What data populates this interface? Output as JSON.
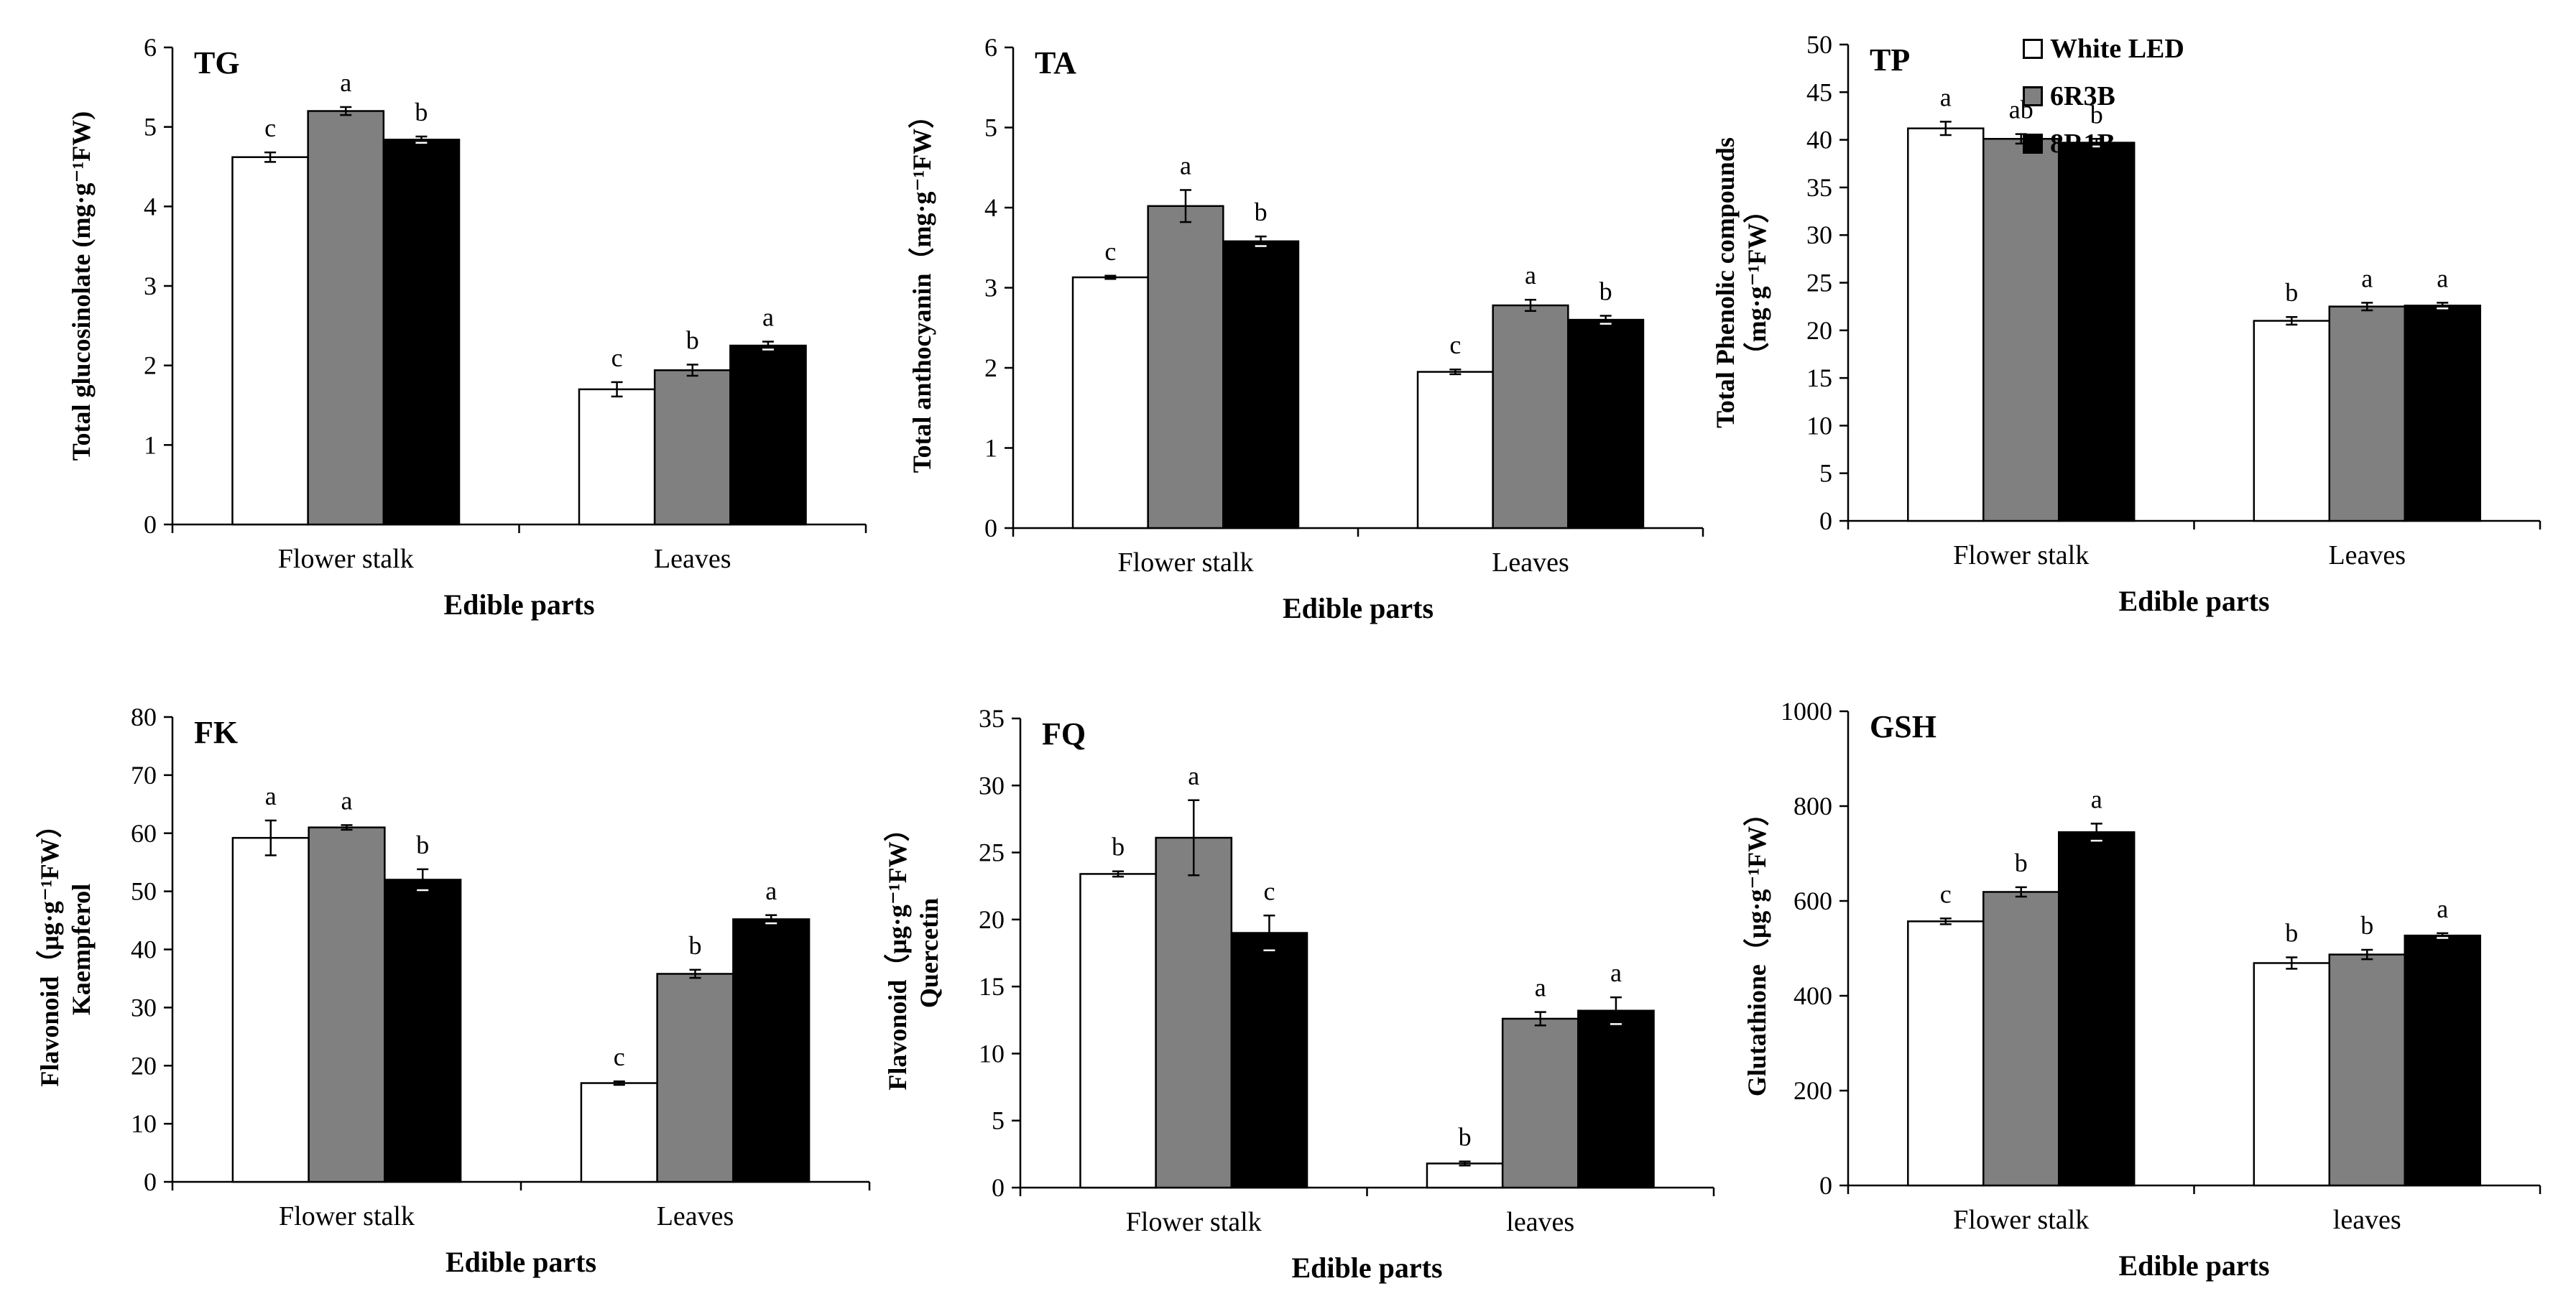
{
  "legend": {
    "items": [
      {
        "label": "White LED",
        "color": "#ffffff"
      },
      {
        "label": "6R3B",
        "color": "#808080"
      },
      {
        "label": "8R1B",
        "color": "#000000"
      }
    ]
  },
  "chart_data": [
    {
      "type": "bar",
      "panel": "TG",
      "ylabel": "Total glucosinolate (mg·g⁻¹FW)",
      "ylabel_lines": [
        "Total glucosinolate (mg·g⁻¹FW)"
      ],
      "xlabel": "Edible parts",
      "categories": [
        "Flower stalk",
        "Leaves"
      ],
      "ylim": [
        0,
        6
      ],
      "yticks": [
        0,
        1,
        2,
        3,
        4,
        5,
        6
      ],
      "series": [
        {
          "name": "White LED",
          "values": [
            4.62,
            1.7
          ],
          "errors": [
            0.06,
            0.09
          ],
          "letters": [
            "c",
            "c"
          ]
        },
        {
          "name": "6R3B",
          "values": [
            5.2,
            1.94
          ],
          "errors": [
            0.05,
            0.07
          ],
          "letters": [
            "a",
            "b"
          ]
        },
        {
          "name": "8R1B",
          "values": [
            4.84,
            2.25
          ],
          "errors": [
            0.04,
            0.05
          ],
          "letters": [
            "b",
            "a"
          ]
        }
      ]
    },
    {
      "type": "bar",
      "panel": "TA",
      "ylabel": "Total anthocyanin（mg·g⁻¹FW）",
      "ylabel_lines": [
        "Total anthocyanin（mg·g⁻¹FW）"
      ],
      "xlabel": "Edible parts",
      "categories": [
        "Flower stalk",
        "Leaves"
      ],
      "ylim": [
        0,
        6
      ],
      "yticks": [
        0,
        1,
        2,
        3,
        4,
        5,
        6
      ],
      "series": [
        {
          "name": "White LED",
          "values": [
            3.13,
            1.95
          ],
          "errors": [
            0.02,
            0.03
          ],
          "letters": [
            "c",
            "c"
          ]
        },
        {
          "name": "6R3B",
          "values": [
            4.02,
            2.78
          ],
          "errors": [
            0.2,
            0.07
          ],
          "letters": [
            "a",
            "a"
          ]
        },
        {
          "name": "8R1B",
          "values": [
            3.58,
            2.6
          ],
          "errors": [
            0.06,
            0.05
          ],
          "letters": [
            "b",
            "b"
          ]
        }
      ]
    },
    {
      "type": "bar",
      "panel": "TP",
      "ylabel": "Total Phenolic compounds (mg·g⁻¹FW)",
      "ylabel_lines": [
        "Total Phenolic compounds",
        "（mg·g⁻¹FW）"
      ],
      "xlabel": "Edible parts",
      "categories": [
        "Flower stalk",
        "Leaves"
      ],
      "ylim": [
        0,
        50
      ],
      "yticks": [
        0,
        5,
        10,
        15,
        20,
        25,
        30,
        35,
        40,
        45,
        50
      ],
      "series": [
        {
          "name": "White LED",
          "values": [
            41.2,
            21.0
          ],
          "errors": [
            0.7,
            0.4
          ],
          "letters": [
            "a",
            "b"
          ]
        },
        {
          "name": "6R3B",
          "values": [
            40.1,
            22.5
          ],
          "errors": [
            0.5,
            0.4
          ],
          "letters": [
            "ab",
            "a"
          ]
        },
        {
          "name": "8R1B",
          "values": [
            39.7,
            22.6
          ],
          "errors": [
            0.4,
            0.3
          ],
          "letters": [
            "b",
            "a"
          ]
        }
      ]
    },
    {
      "type": "bar",
      "panel": "FK",
      "ylabel": "Flavonoid（μg·g⁻¹FW）Kaempferol",
      "ylabel_lines": [
        "Flavonoid（μg·g⁻¹FW）",
        "Kaempferol"
      ],
      "xlabel": "Edible parts",
      "categories": [
        "Flower stalk",
        "Leaves"
      ],
      "ylim": [
        0,
        80
      ],
      "yticks": [
        0,
        10,
        20,
        30,
        40,
        50,
        60,
        70,
        80
      ],
      "series": [
        {
          "name": "White LED",
          "values": [
            59.2,
            17.0
          ],
          "errors": [
            3.0,
            0.3
          ],
          "letters": [
            "a",
            "c"
          ]
        },
        {
          "name": "6R3B",
          "values": [
            61.0,
            35.8
          ],
          "errors": [
            0.4,
            0.7
          ],
          "letters": [
            "a",
            "b"
          ]
        },
        {
          "name": "8R1B",
          "values": [
            52.0,
            45.2
          ],
          "errors": [
            1.8,
            0.7
          ],
          "letters": [
            "b",
            "a"
          ]
        }
      ]
    },
    {
      "type": "bar",
      "panel": "FQ",
      "ylabel": "Flavonoid（μg·g⁻¹FW）Quercetin",
      "ylabel_lines": [
        "Flavonoid（μg·g⁻¹FW）",
        "Quercetin"
      ],
      "xlabel": "Edible parts",
      "categories": [
        "Flower stalk",
        "leaves"
      ],
      "ylim": [
        0,
        35
      ],
      "yticks": [
        0,
        5,
        10,
        15,
        20,
        25,
        30,
        35
      ],
      "series": [
        {
          "name": "White LED",
          "values": [
            23.4,
            1.8
          ],
          "errors": [
            0.2,
            0.15
          ],
          "letters": [
            "b",
            "b"
          ]
        },
        {
          "name": "6R3B",
          "values": [
            26.1,
            12.6
          ],
          "errors": [
            2.8,
            0.5
          ],
          "letters": [
            "a",
            "a"
          ]
        },
        {
          "name": "8R1B",
          "values": [
            19.0,
            13.2
          ],
          "errors": [
            1.3,
            1.0
          ],
          "letters": [
            "c",
            "a"
          ]
        }
      ]
    },
    {
      "type": "bar",
      "panel": "GSH",
      "ylabel": "Glutathione（μg·g⁻¹FW）",
      "ylabel_lines": [
        "Glutathione（μg·g⁻¹FW）"
      ],
      "xlabel": "Edible parts",
      "categories": [
        "Flower stalk",
        "leaves"
      ],
      "ylim": [
        0,
        1000
      ],
      "yticks": [
        0,
        200,
        400,
        600,
        800,
        1000
      ],
      "series": [
        {
          "name": "White LED",
          "values": [
            557,
            469
          ],
          "errors": [
            6,
            12
          ],
          "letters": [
            "c",
            "b"
          ]
        },
        {
          "name": "6R3B",
          "values": [
            619,
            487
          ],
          "errors": [
            10,
            10
          ],
          "letters": [
            "b",
            "b"
          ]
        },
        {
          "name": "8R1B",
          "values": [
            745,
            527
          ],
          "errors": [
            18,
            5
          ],
          "letters": [
            "a",
            "a"
          ]
        }
      ]
    }
  ]
}
